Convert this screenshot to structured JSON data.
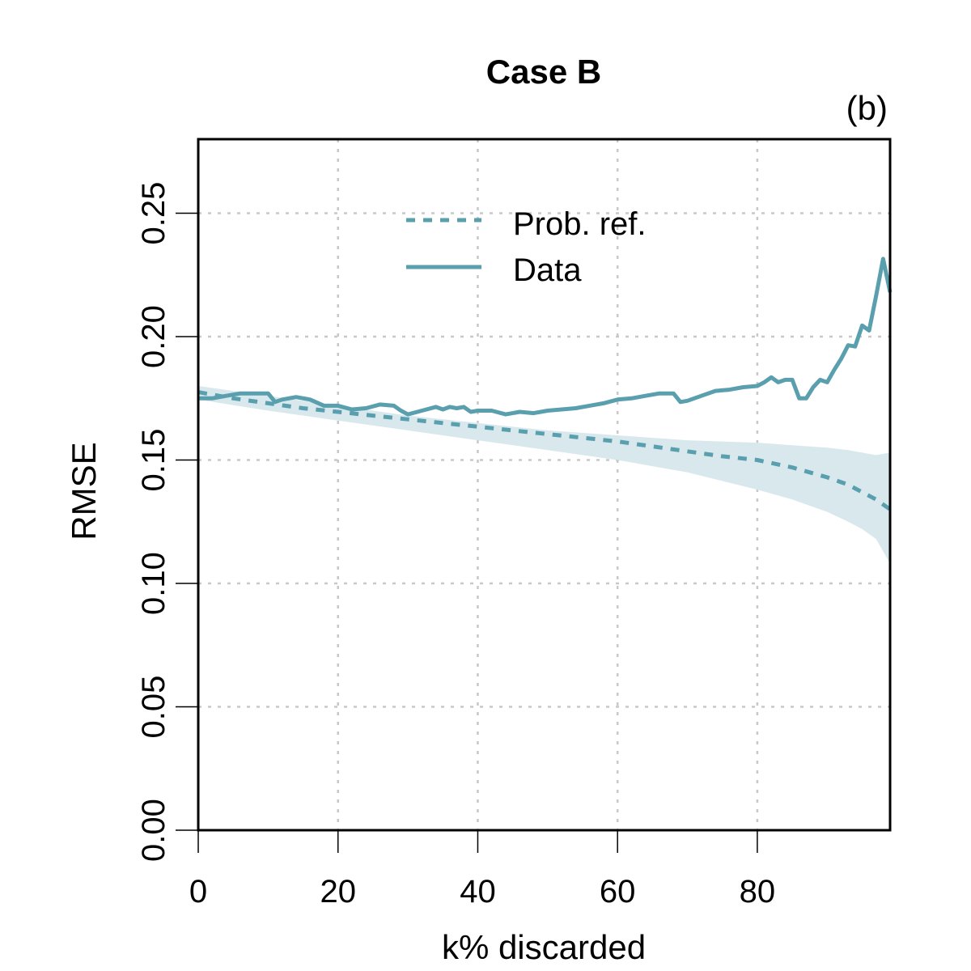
{
  "chart_data": {
    "type": "line",
    "title": "Case B",
    "panel_label": "(b)",
    "xlabel": "k% discarded",
    "ylabel": "RMSE",
    "xlim": [
      0,
      99
    ],
    "ylim": [
      0,
      0.28
    ],
    "xticks": [
      0,
      20,
      40,
      60,
      80
    ],
    "xtick_labels": [
      "0",
      "20",
      "40",
      "60",
      "80"
    ],
    "yticks": [
      0,
      0.05,
      0.1,
      0.15,
      0.2,
      0.25
    ],
    "ytick_labels": [
      "0.00",
      "0.05",
      "0.10",
      "0.15",
      "0.20",
      "0.25"
    ],
    "grid": true,
    "legend_position": "top-center",
    "color": "#5a9fae",
    "band_color": "#d8e8ed",
    "band": {
      "name": "Prob. ref. interval",
      "x": [
        0,
        10,
        20,
        30,
        40,
        50,
        60,
        70,
        80,
        85,
        90,
        93,
        95,
        97,
        99
      ],
      "lower": [
        0.1745,
        0.17,
        0.166,
        0.162,
        0.158,
        0.154,
        0.15,
        0.145,
        0.138,
        0.134,
        0.129,
        0.125,
        0.122,
        0.118,
        0.108
      ],
      "upper": [
        0.18,
        0.176,
        0.172,
        0.168,
        0.165,
        0.162,
        0.16,
        0.158,
        0.157,
        0.156,
        0.155,
        0.154,
        0.153,
        0.152,
        0.153
      ]
    },
    "series": [
      {
        "name": "Prob. ref.",
        "style": "dashed",
        "x": [
          0,
          5,
          10,
          15,
          20,
          25,
          30,
          35,
          40,
          45,
          50,
          55,
          60,
          65,
          70,
          75,
          80,
          85,
          90,
          93,
          95,
          97,
          99
        ],
        "y": [
          0.1775,
          0.175,
          0.173,
          0.171,
          0.1695,
          0.168,
          0.1665,
          0.165,
          0.1635,
          0.162,
          0.1605,
          0.159,
          0.1575,
          0.1555,
          0.1535,
          0.1515,
          0.15,
          0.147,
          0.143,
          0.14,
          0.137,
          0.134,
          0.13
        ]
      },
      {
        "name": "Data",
        "style": "solid",
        "x": [
          0,
          2,
          4,
          6,
          8,
          10,
          11,
          12,
          14,
          16,
          18,
          20,
          22,
          24,
          26,
          28,
          29,
          30,
          32,
          34,
          35,
          36,
          37,
          38,
          39,
          40,
          42,
          44,
          46,
          48,
          50,
          52,
          54,
          56,
          58,
          60,
          62,
          64,
          66,
          68,
          69,
          70,
          72,
          74,
          76,
          78,
          80,
          81,
          82,
          83,
          84,
          85,
          86,
          87,
          88,
          89,
          90,
          91,
          92,
          93,
          94,
          95,
          96,
          97,
          98,
          99
        ],
        "y": [
          0.175,
          0.175,
          0.176,
          0.177,
          0.177,
          0.177,
          0.1735,
          0.1745,
          0.1755,
          0.1745,
          0.172,
          0.172,
          0.1705,
          0.171,
          0.1725,
          0.172,
          0.17,
          0.1685,
          0.17,
          0.1715,
          0.1705,
          0.1715,
          0.171,
          0.1715,
          0.1695,
          0.17,
          0.17,
          0.1685,
          0.1695,
          0.169,
          0.17,
          0.1705,
          0.171,
          0.172,
          0.173,
          0.1745,
          0.175,
          0.176,
          0.177,
          0.177,
          0.1735,
          0.174,
          0.176,
          0.178,
          0.1785,
          0.1795,
          0.18,
          0.1815,
          0.1835,
          0.1815,
          0.1825,
          0.1825,
          0.175,
          0.175,
          0.1795,
          0.1825,
          0.1815,
          0.1865,
          0.191,
          0.1965,
          0.196,
          0.2045,
          0.2025,
          0.2165,
          0.2315,
          0.218
        ]
      }
    ]
  }
}
